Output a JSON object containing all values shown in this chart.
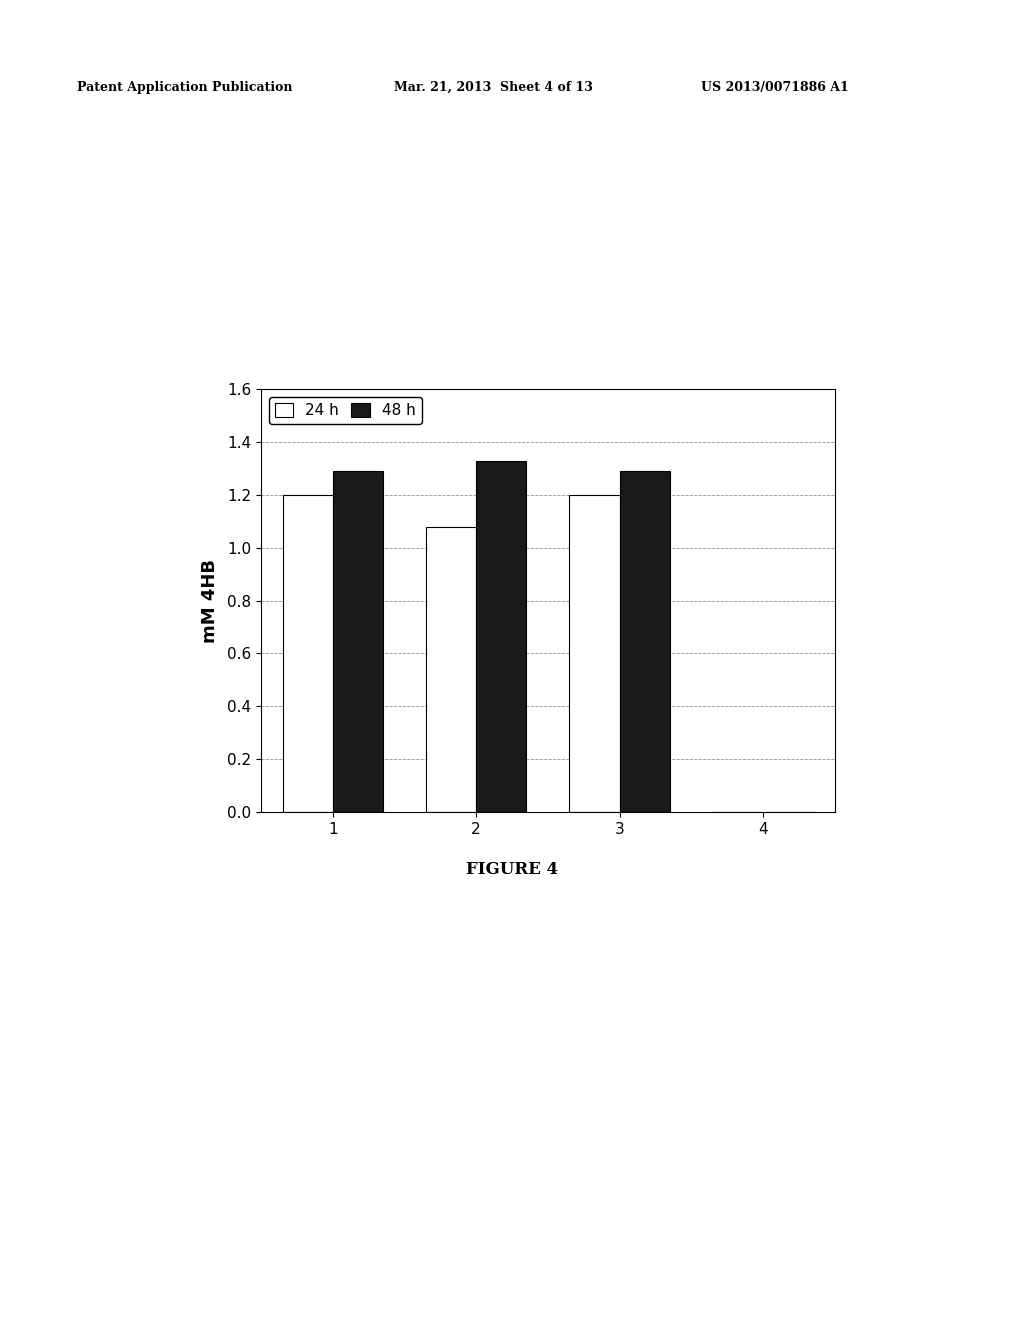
{
  "categories": [
    1,
    2,
    3,
    4
  ],
  "values_24h": [
    1.2,
    1.08,
    1.2,
    0.0
  ],
  "values_48h": [
    1.29,
    1.33,
    1.29,
    0.0
  ],
  "bar_color_24h": "#ffffff",
  "bar_color_48h": "#1a1a1a",
  "bar_edgecolor": "#000000",
  "bar_width": 0.35,
  "ylabel": "mM 4HB",
  "ylim": [
    0.0,
    1.6
  ],
  "yticks": [
    0.0,
    0.2,
    0.4,
    0.6,
    0.8,
    1.0,
    1.2,
    1.4,
    1.6
  ],
  "xticks": [
    1,
    2,
    3,
    4
  ],
  "legend_labels": [
    "24 h",
    "48 h"
  ],
  "grid_color": "#888888",
  "grid_style": "--",
  "figure_caption": "FIGURE 4",
  "header_left": "Patent Application Publication",
  "header_center": "Mar. 21, 2013  Sheet 4 of 13",
  "header_right": "US 2013/0071886 A1",
  "background_color": "#ffffff",
  "axis_fontsize": 13,
  "tick_fontsize": 11,
  "legend_fontsize": 11,
  "caption_fontsize": 12,
  "header_fontsize": 9
}
